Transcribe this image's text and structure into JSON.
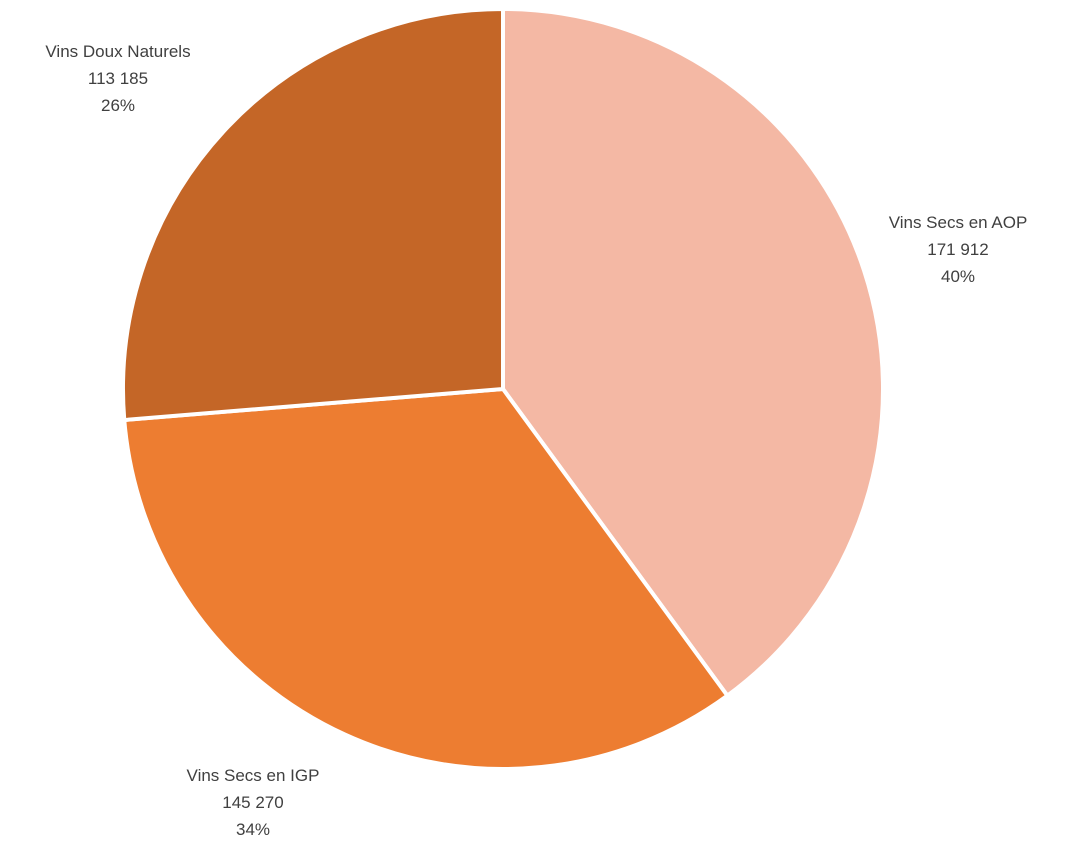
{
  "chart_data": {
    "type": "pie",
    "title": "",
    "start_angle_deg": 0,
    "direction": "clockwise",
    "slices": [
      {
        "name": "Vins Secs en AOP",
        "value": 171912,
        "value_label": "171 912",
        "percent_label": "40%",
        "color": "#F4B8A4"
      },
      {
        "name": "Vins Secs en IGP",
        "value": 145270,
        "value_label": "145 270",
        "percent_label": "34%",
        "color": "#ED7D31"
      },
      {
        "name": "Vins Doux Naturels",
        "value": 113185,
        "value_label": "113 185",
        "percent_label": "26%",
        "color": "#C46627"
      }
    ],
    "separator_color": "#FFFFFF"
  }
}
